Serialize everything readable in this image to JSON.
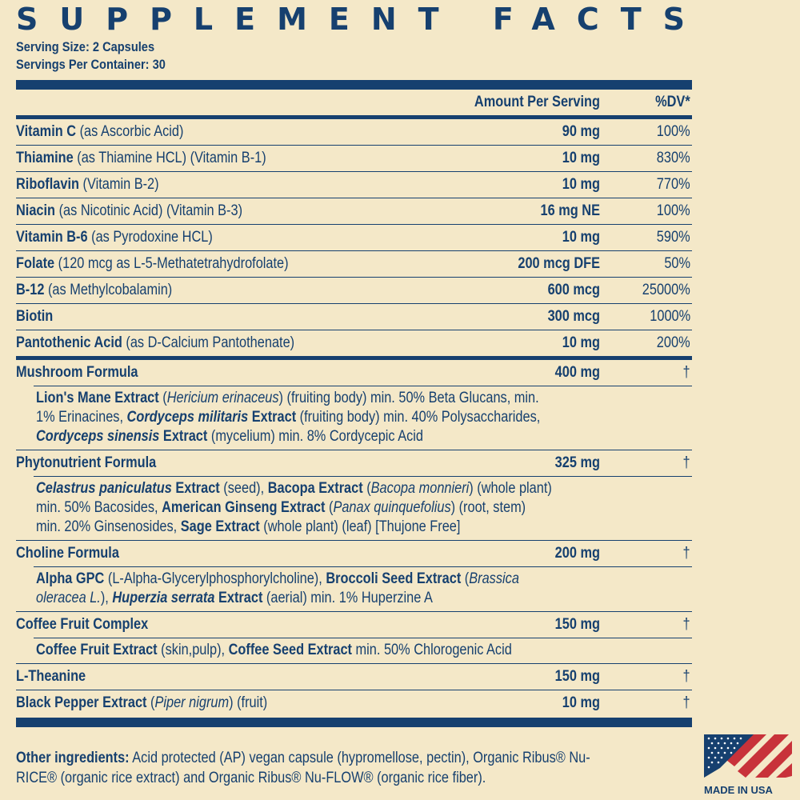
{
  "header": {
    "title": "SUPPLEMENT FACTS",
    "serving_size": "Serving Size: 2 Capsules",
    "servings_per_container": "Servings Per Container: 30"
  },
  "columns": {
    "amount": "Amount Per Serving",
    "dv": "%DV*"
  },
  "vitamins": [
    {
      "name": "Vitamin C",
      "detail": "(as Ascorbic Acid)",
      "amount": "90 mg",
      "dv": "100%"
    },
    {
      "name": "Thiamine",
      "detail": "(as Thiamine HCL) (Vitamin B-1)",
      "amount": "10 mg",
      "dv": "830%"
    },
    {
      "name": "Riboflavin",
      "detail": "(Vitamin B-2)",
      "amount": "10 mg",
      "dv": "770%"
    },
    {
      "name": "Niacin",
      "detail": "(as Nicotinic Acid) (Vitamin B-3)",
      "amount": "16 mg NE",
      "dv": "100%"
    },
    {
      "name": "Vitamin B-6",
      "detail": "(as Pyrodoxine HCL)",
      "amount": "10 mg",
      "dv": "590%"
    },
    {
      "name": "Folate",
      "detail": "(120 mcg as L-5-Methatetrahydrofolate)",
      "amount": "200 mcg DFE",
      "dv": "50%"
    },
    {
      "name": "B-12",
      "detail": "(as Methylcobalamin)",
      "amount": "600 mcg",
      "dv": "25000%"
    },
    {
      "name": "Biotin",
      "detail": "",
      "amount": "300 mcg",
      "dv": "1000%"
    },
    {
      "name": "Pantothenic Acid",
      "detail": "(as D-Calcium Pantothenate)",
      "amount": "10 mg",
      "dv": "200%"
    }
  ],
  "blends": {
    "mushroom": {
      "name": "Mushroom Formula",
      "amount": "400 mg",
      "dv": "†",
      "lines": [
        {
          "b1": "Lion's Mane Extract",
          "t1": " (",
          "i1": "Hericium erinaceus",
          "t2": ") (fruiting body) min. 50% Beta Glucans, min."
        },
        {
          "t0": "1% Erinacines, ",
          "bi1": "Cordyceps militaris",
          "b1": " Extract",
          "t1": " (fruiting body) min. 40% Polysaccharides,"
        },
        {
          "bi1": "Cordyceps sinensis",
          "b1": " Extract",
          "t1": " (mycelium) min. 8% Cordycepic Acid"
        }
      ]
    },
    "phyto": {
      "name": "Phytonutrient Formula",
      "amount": "325 mg",
      "dv": "†",
      "lines": [
        {
          "bi1": "Celastrus paniculatus",
          "b1": " Extract",
          "t1": " (seed), ",
          "b2": "Bacopa Extract",
          "t2": " (",
          "i1": "Bacopa monnieri",
          "t3": ") (whole plant)"
        },
        {
          "t0": "min. 50% Bacosides, ",
          "b1": "American Ginseng Extract",
          "t1": " (",
          "i1": "Panax quinquefolius",
          "t2": ") (root, stem)"
        },
        {
          "t0": "min. 20% Ginsenosides, ",
          "b1": "Sage Extract",
          "t1": " (whole plant) (leaf) [Thujone Free]"
        }
      ]
    },
    "choline": {
      "name": "Choline Formula",
      "amount": "200 mg",
      "dv": "†",
      "lines": [
        {
          "b1": "Alpha GPC",
          "t1": " (L-Alpha-Glycerylphosphorylcholine), ",
          "b2": "Broccoli Seed Extract",
          "t2": " (",
          "i1": "Brassica"
        },
        {
          "i0": "oleracea L.",
          "t0": "), ",
          "bi1": "Huperzia serrata",
          "b1": " Extract",
          "t1": " (aerial) min. 1% Huperzine A"
        }
      ]
    },
    "coffee": {
      "name": "Coffee Fruit Complex",
      "amount": "150 mg",
      "dv": "†",
      "lines": [
        {
          "b1": "Coffee Fruit Extract",
          "t1": " (skin,pulp), ",
          "b2": "Coffee Seed Extract",
          "t2": " min. 50% Chlorogenic Acid"
        }
      ]
    },
    "theanine": {
      "name": "L-Theanine",
      "amount": "150 mg",
      "dv": "†"
    },
    "pepper": {
      "name": "Black Pepper Extract",
      "t1": " (",
      "i1": "Piper nigrum",
      "t2": ") (fruit)",
      "amount": "10 mg",
      "dv": "†"
    }
  },
  "other": {
    "label": "Other ingredients:",
    "line1": " Acid protected (AP) vegan capsule (hypromellose, pectin), Organic Ribus® Nu-",
    "line2": "RICE® (organic rice extract) and Organic Ribus® Nu-FLOW® (organic rice fiber)."
  },
  "badge": {
    "text": "MADE IN USA",
    "colors": {
      "blue": "#16406f",
      "red": "#c8323a"
    }
  }
}
